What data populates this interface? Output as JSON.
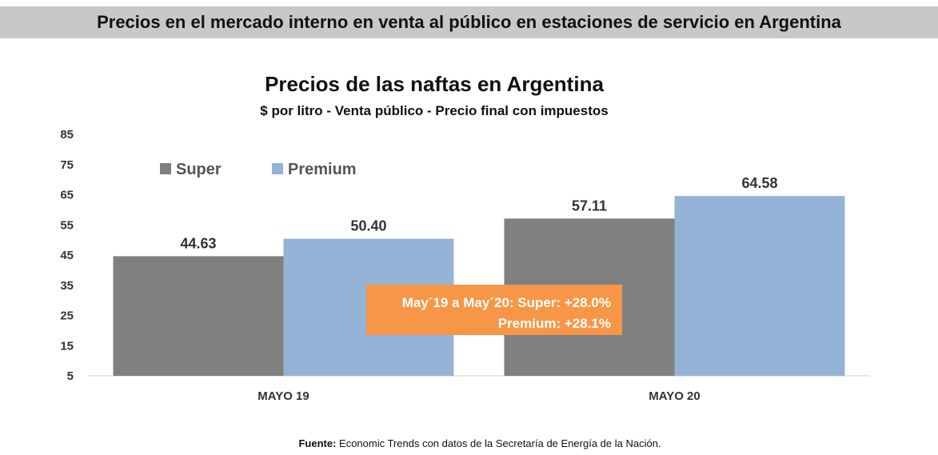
{
  "banner": {
    "title": "Precios en el mercado interno en venta al público en estaciones de servicio en Argentina"
  },
  "chart_data": {
    "type": "bar",
    "title": "Precios de las naftas en Argentina",
    "subtitle": "$ por litro - Venta público - Precio final con impuestos",
    "categories": [
      "MAYO 19",
      "MAYO 20"
    ],
    "series": [
      {
        "name": "Super",
        "values": [
          44.63,
          57.11
        ],
        "labels": [
          "44.63",
          "57.11"
        ],
        "color": "#808080"
      },
      {
        "name": "Premium",
        "values": [
          50.4,
          64.58
        ],
        "labels": [
          "50.40",
          "64.58"
        ],
        "color": "#95b3d7"
      }
    ],
    "yticks": [
      "5",
      "15",
      "25",
      "35",
      "45",
      "55",
      "65",
      "75",
      "85"
    ],
    "ylim": [
      5,
      85
    ],
    "grid": false,
    "legend_position": "top-left",
    "annotation": {
      "line1": "May´19 a May´20: Super: +28.0%",
      "line2": "Premium: +28.1%",
      "color": "#f79646"
    }
  },
  "footer": {
    "source_label": "Fuente:",
    "source_text": "Economic Trends con datos de la Secretaría de Energía de la Nación."
  }
}
